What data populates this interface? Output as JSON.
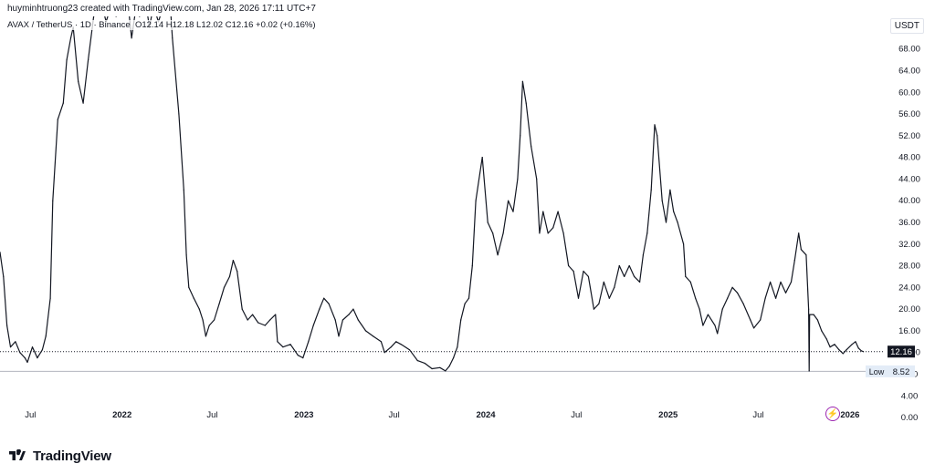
{
  "credit": "huyminhtruong23 created with TradingView.com, Jan 28, 2026 17:11 UTC+7",
  "legend": {
    "symbol": "AVAX / TetherUS · 1D · Binance",
    "open": "O12.14",
    "high": "H12.18",
    "low": "L12.02",
    "close": "C12.16",
    "change": "+0.02 (+0.16%)"
  },
  "currency": "USDT",
  "branding": "TradingView",
  "bolt_icon": "⚡",
  "colors": {
    "line": "#131722",
    "price_tag_bg": "#131722",
    "low_tag_bg": "#e3ecf7",
    "grid_text": "#131722"
  },
  "chart_data": {
    "type": "line",
    "title": "",
    "xlabel": "",
    "ylabel": "",
    "ylim": [
      -1,
      74
    ],
    "yticks": [
      0,
      4,
      8,
      12,
      16,
      20,
      24,
      28,
      32,
      36,
      40,
      44,
      48,
      52,
      56,
      60,
      64,
      68
    ],
    "ytick_labels": [
      "0.00",
      "4.00",
      "8.00",
      "12.00",
      "16.00",
      "20.00",
      "24.00",
      "28.00",
      "32.00",
      "36.00",
      "40.00",
      "44.00",
      "48.00",
      "52.00",
      "56.00",
      "60.00",
      "64.00",
      "68.00"
    ],
    "xlim": [
      "2021-05-01",
      "2026-03-10"
    ],
    "xticks": [
      {
        "date": "2021-07-01",
        "label": "Jul",
        "bold": false
      },
      {
        "date": "2022-01-01",
        "label": "2022",
        "bold": true
      },
      {
        "date": "2022-07-01",
        "label": "Jul",
        "bold": false
      },
      {
        "date": "2023-01-01",
        "label": "2023",
        "bold": true
      },
      {
        "date": "2023-07-01",
        "label": "Jul",
        "bold": false
      },
      {
        "date": "2024-01-01",
        "label": "2024",
        "bold": true
      },
      {
        "date": "2024-07-01",
        "label": "Jul",
        "bold": false
      },
      {
        "date": "2025-01-01",
        "label": "2025",
        "bold": true
      },
      {
        "date": "2025-07-01",
        "label": "Jul",
        "bold": false
      },
      {
        "date": "2026-01-01",
        "label": "2026",
        "bold": true
      }
    ],
    "series": [
      {
        "points": [
          [
            "2021-05-01",
            30.5
          ],
          [
            "2021-05-08",
            26
          ],
          [
            "2021-05-15",
            17
          ],
          [
            "2021-05-22",
            13
          ],
          [
            "2021-06-01",
            14
          ],
          [
            "2021-06-10",
            12
          ],
          [
            "2021-06-20",
            11
          ],
          [
            "2021-06-25",
            10.2
          ],
          [
            "2021-07-05",
            13
          ],
          [
            "2021-07-15",
            11
          ],
          [
            "2021-07-25",
            12.5
          ],
          [
            "2021-08-01",
            15
          ],
          [
            "2021-08-10",
            22
          ],
          [
            "2021-08-15",
            40
          ],
          [
            "2021-08-25",
            55
          ],
          [
            "2021-09-05",
            58
          ],
          [
            "2021-09-12",
            66
          ],
          [
            "2021-09-20",
            70
          ],
          [
            "2021-09-25",
            72
          ],
          [
            "2021-10-05",
            62
          ],
          [
            "2021-10-15",
            58
          ],
          [
            "2021-10-25",
            66
          ],
          [
            "2021-11-05",
            74
          ],
          [
            "2021-11-15",
            75
          ],
          [
            "2021-11-22",
            76
          ],
          [
            "2021-11-30",
            73
          ],
          [
            "2021-12-10",
            76
          ],
          [
            "2021-12-20",
            74
          ],
          [
            "2022-01-01",
            75
          ],
          [
            "2022-01-10",
            79
          ],
          [
            "2022-01-20",
            70
          ],
          [
            "2022-01-28",
            75
          ],
          [
            "2022-02-05",
            74
          ],
          [
            "2022-02-15",
            78
          ],
          [
            "2022-02-25",
            72
          ],
          [
            "2022-03-05",
            76
          ],
          [
            "2022-03-15",
            73
          ],
          [
            "2022-03-25",
            76
          ],
          [
            "2022-04-05",
            80
          ],
          [
            "2022-04-12",
            70
          ],
          [
            "2022-04-25",
            56
          ],
          [
            "2022-05-05",
            42
          ],
          [
            "2022-05-10",
            30
          ],
          [
            "2022-05-15",
            24
          ],
          [
            "2022-05-25",
            22
          ],
          [
            "2022-06-05",
            20
          ],
          [
            "2022-06-12",
            18
          ],
          [
            "2022-06-18",
            15
          ],
          [
            "2022-06-25",
            17
          ],
          [
            "2022-07-05",
            18
          ],
          [
            "2022-07-15",
            21
          ],
          [
            "2022-07-25",
            24
          ],
          [
            "2022-08-05",
            26
          ],
          [
            "2022-08-12",
            29
          ],
          [
            "2022-08-20",
            27
          ],
          [
            "2022-08-30",
            20
          ],
          [
            "2022-09-10",
            18
          ],
          [
            "2022-09-20",
            19
          ],
          [
            "2022-10-01",
            17.5
          ],
          [
            "2022-10-15",
            17
          ],
          [
            "2022-10-25",
            18
          ],
          [
            "2022-11-05",
            19
          ],
          [
            "2022-11-09",
            14
          ],
          [
            "2022-11-20",
            13
          ],
          [
            "2022-12-05",
            13.5
          ],
          [
            "2022-12-20",
            11.5
          ],
          [
            "2022-12-30",
            11
          ],
          [
            "2023-01-10",
            14
          ],
          [
            "2023-01-20",
            17
          ],
          [
            "2023-02-01",
            20
          ],
          [
            "2023-02-10",
            22
          ],
          [
            "2023-02-20",
            21
          ],
          [
            "2023-03-05",
            18
          ],
          [
            "2023-03-12",
            15
          ],
          [
            "2023-03-20",
            18
          ],
          [
            "2023-04-01",
            19
          ],
          [
            "2023-04-10",
            20
          ],
          [
            "2023-04-20",
            18
          ],
          [
            "2023-05-05",
            16
          ],
          [
            "2023-05-20",
            15
          ],
          [
            "2023-06-05",
            14
          ],
          [
            "2023-06-12",
            12
          ],
          [
            "2023-06-25",
            13
          ],
          [
            "2023-07-05",
            14
          ],
          [
            "2023-07-15",
            13.5
          ],
          [
            "2023-08-01",
            12.5
          ],
          [
            "2023-08-17",
            10.5
          ],
          [
            "2023-09-01",
            10
          ],
          [
            "2023-09-15",
            9
          ],
          [
            "2023-10-01",
            9.2
          ],
          [
            "2023-10-12",
            8.6
          ],
          [
            "2023-10-20",
            9.5
          ],
          [
            "2023-10-28",
            11
          ],
          [
            "2023-11-05",
            13
          ],
          [
            "2023-11-12",
            18
          ],
          [
            "2023-11-20",
            21
          ],
          [
            "2023-11-28",
            22
          ],
          [
            "2023-12-05",
            28
          ],
          [
            "2023-12-12",
            40
          ],
          [
            "2023-12-20",
            45
          ],
          [
            "2023-12-25",
            48
          ],
          [
            "2024-01-05",
            36
          ],
          [
            "2024-01-15",
            34
          ],
          [
            "2024-01-25",
            30
          ],
          [
            "2024-02-05",
            34
          ],
          [
            "2024-02-15",
            40
          ],
          [
            "2024-02-25",
            38
          ],
          [
            "2024-03-05",
            44
          ],
          [
            "2024-03-10",
            52
          ],
          [
            "2024-03-15",
            62
          ],
          [
            "2024-03-22",
            58
          ],
          [
            "2024-04-01",
            50
          ],
          [
            "2024-04-12",
            44
          ],
          [
            "2024-04-18",
            34
          ],
          [
            "2024-04-25",
            38
          ],
          [
            "2024-05-05",
            34
          ],
          [
            "2024-05-15",
            35
          ],
          [
            "2024-05-25",
            38
          ],
          [
            "2024-06-05",
            34
          ],
          [
            "2024-06-15",
            28
          ],
          [
            "2024-06-25",
            27
          ],
          [
            "2024-07-05",
            22
          ],
          [
            "2024-07-15",
            27
          ],
          [
            "2024-07-25",
            26
          ],
          [
            "2024-08-05",
            20
          ],
          [
            "2024-08-15",
            21
          ],
          [
            "2024-08-25",
            25
          ],
          [
            "2024-09-05",
            22
          ],
          [
            "2024-09-15",
            24
          ],
          [
            "2024-09-25",
            28
          ],
          [
            "2024-10-05",
            26
          ],
          [
            "2024-10-15",
            28
          ],
          [
            "2024-10-25",
            26
          ],
          [
            "2024-11-05",
            25
          ],
          [
            "2024-11-12",
            30
          ],
          [
            "2024-11-20",
            34
          ],
          [
            "2024-11-28",
            42
          ],
          [
            "2024-12-05",
            54
          ],
          [
            "2024-12-10",
            52
          ],
          [
            "2024-12-20",
            40
          ],
          [
            "2024-12-28",
            36
          ],
          [
            "2025-01-05",
            42
          ],
          [
            "2025-01-12",
            38
          ],
          [
            "2025-01-20",
            36
          ],
          [
            "2025-02-01",
            32
          ],
          [
            "2025-02-05",
            26
          ],
          [
            "2025-02-15",
            25
          ],
          [
            "2025-02-25",
            22
          ],
          [
            "2025-03-05",
            20
          ],
          [
            "2025-03-12",
            17
          ],
          [
            "2025-03-22",
            19
          ],
          [
            "2025-04-05",
            17
          ],
          [
            "2025-04-10",
            15.5
          ],
          [
            "2025-04-20",
            20
          ],
          [
            "2025-04-30",
            22
          ],
          [
            "2025-05-10",
            24
          ],
          [
            "2025-05-20",
            23
          ],
          [
            "2025-06-01",
            21
          ],
          [
            "2025-06-15",
            18
          ],
          [
            "2025-06-22",
            16.5
          ],
          [
            "2025-07-05",
            18
          ],
          [
            "2025-07-15",
            22
          ],
          [
            "2025-07-25",
            25
          ],
          [
            "2025-08-05",
            22
          ],
          [
            "2025-08-15",
            25
          ],
          [
            "2025-08-25",
            23
          ],
          [
            "2025-09-05",
            25
          ],
          [
            "2025-09-12",
            29
          ],
          [
            "2025-09-20",
            34
          ],
          [
            "2025-09-25",
            31
          ],
          [
            "2025-10-05",
            30
          ],
          [
            "2025-10-10",
            20
          ],
          [
            "2025-10-11",
            8.6
          ],
          [
            "2025-10-12",
            19
          ],
          [
            "2025-10-20",
            19
          ],
          [
            "2025-10-28",
            18
          ],
          [
            "2025-11-05",
            16
          ],
          [
            "2025-11-15",
            14.5
          ],
          [
            "2025-11-22",
            13
          ],
          [
            "2025-12-01",
            13.5
          ],
          [
            "2025-12-10",
            12.5
          ],
          [
            "2025-12-18",
            11.8
          ],
          [
            "2025-12-25",
            12.5
          ],
          [
            "2026-01-05",
            13.5
          ],
          [
            "2026-01-12",
            14
          ],
          [
            "2026-01-18",
            12.8
          ],
          [
            "2026-01-24",
            12.3
          ],
          [
            "2026-01-28",
            12.16
          ]
        ]
      }
    ],
    "last_price": {
      "value": 12.16,
      "label": "12.16"
    },
    "low_marker": {
      "value": 8.52,
      "label": "Low",
      "value_label": "8.52"
    },
    "grid": false,
    "legend": "top-left"
  }
}
